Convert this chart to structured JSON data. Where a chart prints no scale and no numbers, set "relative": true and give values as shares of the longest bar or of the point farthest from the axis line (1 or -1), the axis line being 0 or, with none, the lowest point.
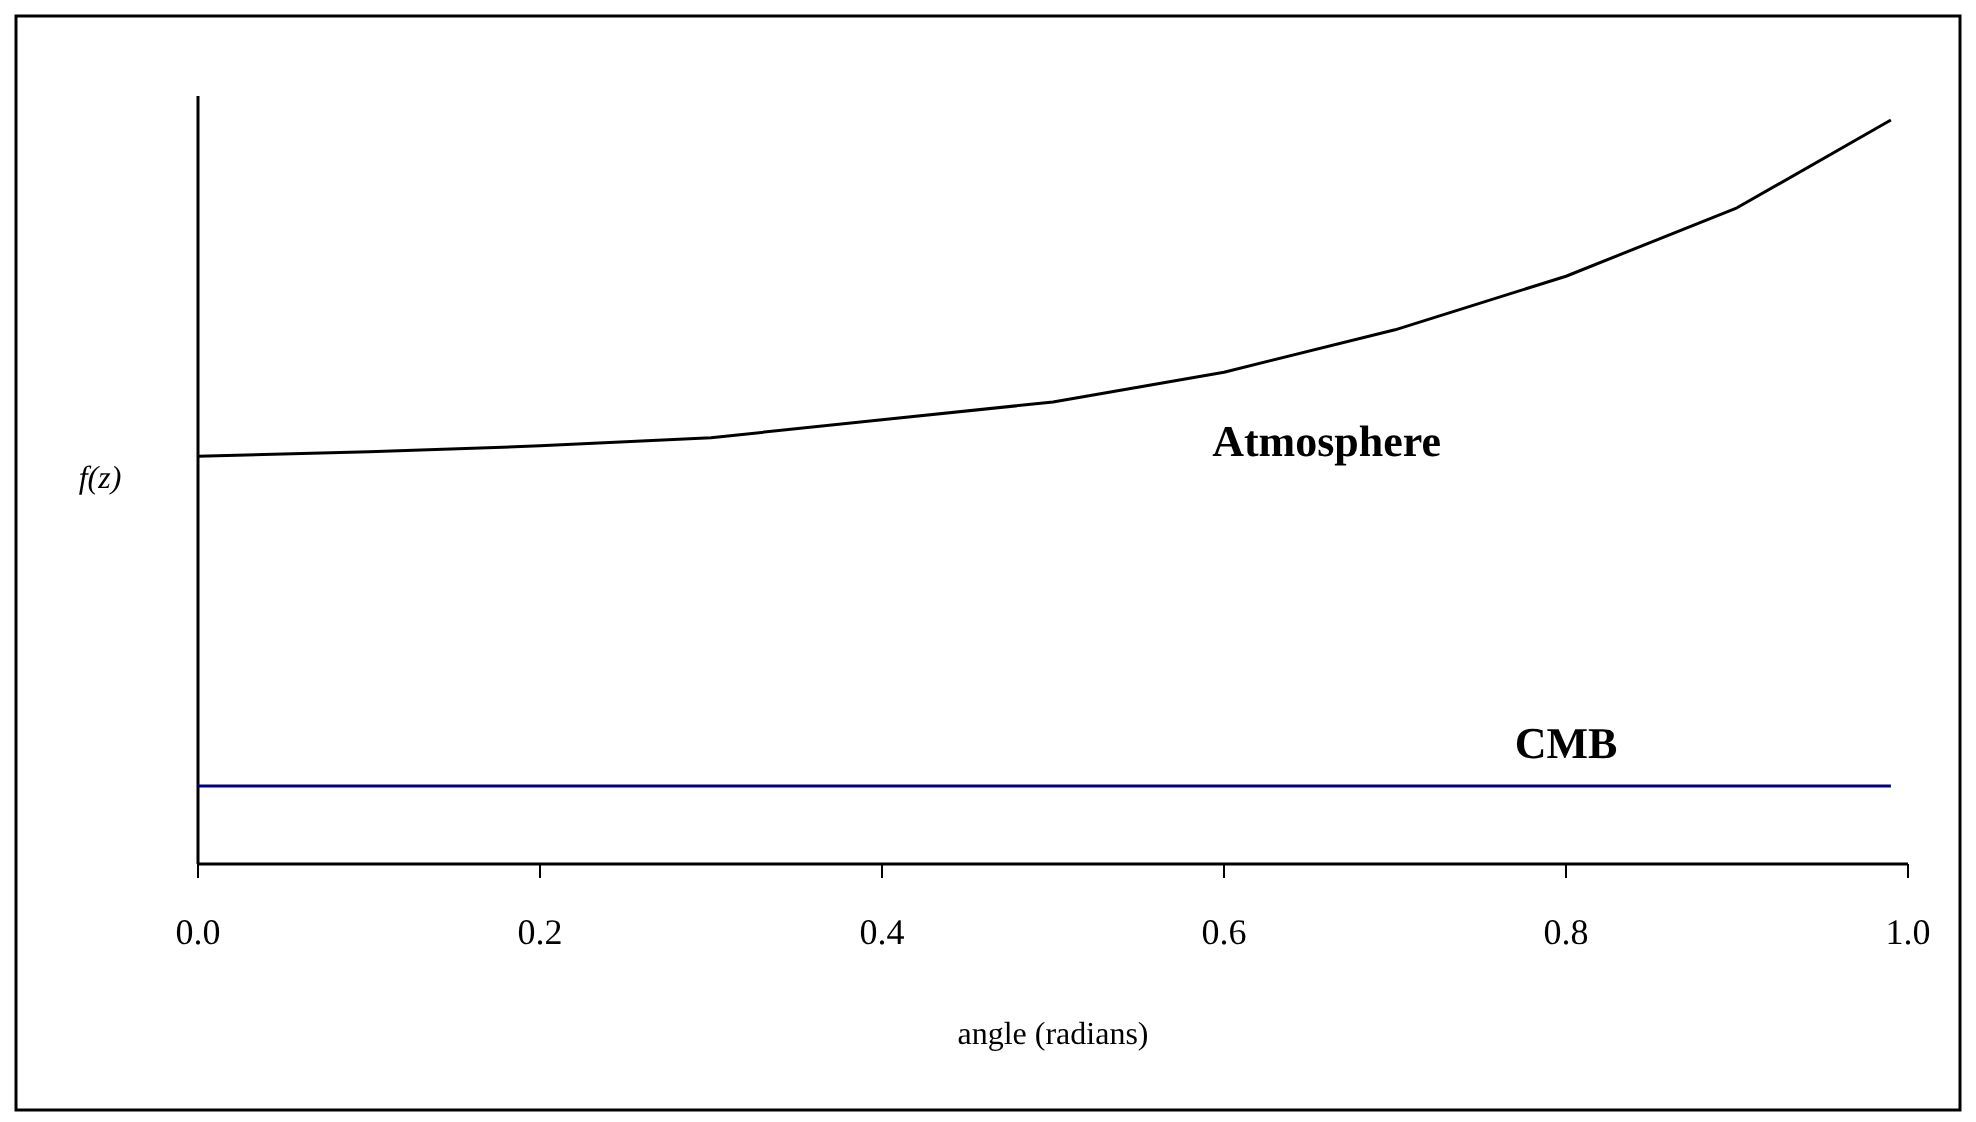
{
  "chart_data": {
    "type": "line",
    "relative": true,
    "xlabel": "angle (radians)",
    "ylabel": "f(z)",
    "xlim": [
      0,
      1
    ],
    "xticks": [
      {
        "value": 0,
        "label": "0.0"
      },
      {
        "value": 0.2,
        "label": "0.2"
      },
      {
        "value": 0.4,
        "label": "0.4"
      },
      {
        "value": 0.6,
        "label": "0.6"
      },
      {
        "value": 0.8,
        "label": "0.8"
      },
      {
        "value": 1,
        "label": "1.0"
      }
    ],
    "grid": false,
    "marker": "none",
    "line_style": "solid",
    "series": [
      {
        "name": "Atmosphere",
        "color": "#000000",
        "x": [
          0,
          0.1,
          0.2,
          0.3,
          0.4,
          0.5,
          0.6,
          0.7,
          0.8,
          0.9,
          0.99
        ],
        "values": [
          0.548,
          0.554,
          0.562,
          0.573,
          0.597,
          0.621,
          0.661,
          0.718,
          0.79,
          0.882,
          1
        ]
      },
      {
        "name": "CMB",
        "color": "#000080",
        "x": [
          0,
          0.99
        ],
        "values": [
          0.105,
          0.105
        ]
      }
    ]
  }
}
